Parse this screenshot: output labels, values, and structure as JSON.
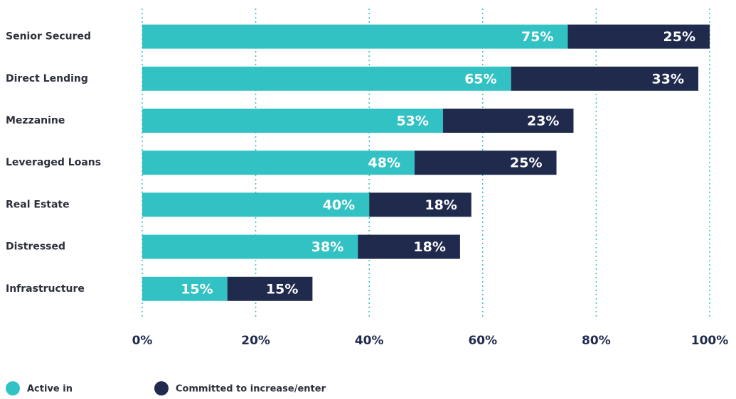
{
  "chart_data": {
    "type": "stacked-bar-horizontal",
    "categories": [
      "Senior Secured",
      "Direct Lending",
      "Mezzanine",
      "Leveraged Loans",
      "Real Estate",
      "Distressed",
      "Infrastructure"
    ],
    "series": [
      {
        "name": "Active in",
        "color": "#33c2c4",
        "values": [
          75,
          65,
          53,
          48,
          40,
          38,
          15
        ],
        "value_labels": [
          "75%",
          "65%",
          "53%",
          "48%",
          "40%",
          "38%",
          "15%"
        ]
      },
      {
        "name": "Committed to increase/enter",
        "color": "#1f2a4d",
        "values": [
          25,
          33,
          23,
          25,
          18,
          18,
          15
        ],
        "value_labels": [
          "25%",
          "33%",
          "23%",
          "25%",
          "18%",
          "18%",
          "15%"
        ]
      }
    ],
    "xlim": [
      0,
      100
    ],
    "xticks": [
      {
        "value": 0,
        "label": "0%"
      },
      {
        "value": 20,
        "label": "20%"
      },
      {
        "value": 40,
        "label": "40%"
      },
      {
        "value": 60,
        "label": "60%"
      },
      {
        "value": 80,
        "label": "80%"
      },
      {
        "value": 100,
        "label": "100%"
      }
    ],
    "grid": true,
    "grid_color": "#33c2c4",
    "legend": "bottom-left"
  }
}
